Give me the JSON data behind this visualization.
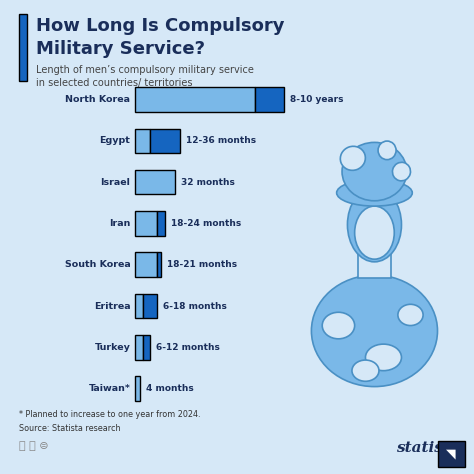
{
  "title_line1": "How Long Is Compulsory",
  "title_line2": "Military Service?",
  "subtitle_line1": "Length of men’s compulsory military service",
  "subtitle_line2": "in selected countries/ territories",
  "background_color": "#d6e8f7",
  "title_color": "#1a2e5a",
  "subtitle_color": "#555555",
  "countries": [
    "North Korea",
    "Egypt",
    "Israel",
    "Iran",
    "South Korea",
    "Eritrea",
    "Turkey",
    "Taiwan*"
  ],
  "labels": [
    "8-10 years",
    "12-36 months",
    "32 months",
    "18-24 months",
    "18-21 months",
    "6-18 months",
    "6-12 months",
    "4 months"
  ],
  "bar_light_months": [
    96,
    12,
    32,
    18,
    18,
    6,
    6,
    4
  ],
  "bar_dark_months": [
    24,
    24,
    0,
    6,
    3,
    12,
    6,
    0
  ],
  "max_months": 120,
  "color_light": "#7ab8e8",
  "color_dark": "#1565c0",
  "accent_color": "#1565c0",
  "footnote": "* Planned to increase to one year from 2024.",
  "source": "Source: Statista research",
  "soldier_color": "#7ab8e8",
  "soldier_stroke": "#4a90c4"
}
